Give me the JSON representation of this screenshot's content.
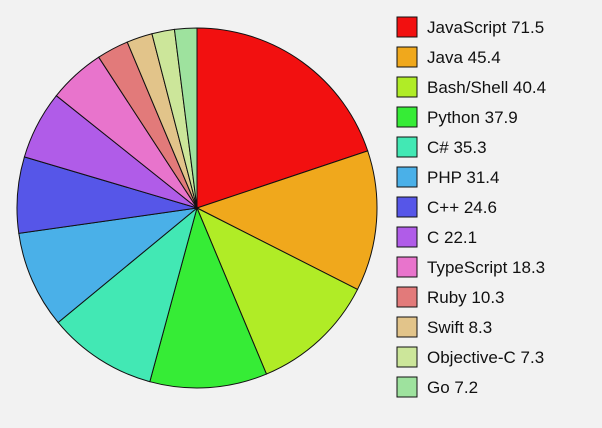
{
  "chart_data": {
    "type": "pie",
    "title": "",
    "legend_position": "right",
    "series": [
      {
        "name": "JavaScript",
        "value": 71.5,
        "label": "JavaScript 71.5",
        "color": "#f21010"
      },
      {
        "name": "Java",
        "value": 45.4,
        "label": "Java 45.4",
        "color": "#f0a81c"
      },
      {
        "name": "Bash/Shell",
        "value": 40.4,
        "label": "Bash/Shell 40.4",
        "color": "#b0ec26"
      },
      {
        "name": "Python",
        "value": 37.9,
        "label": "Python 37.9",
        "color": "#36ec36"
      },
      {
        "name": "C#",
        "value": 35.3,
        "label": "C# 35.3",
        "color": "#42e8b4"
      },
      {
        "name": "PHP",
        "value": 31.4,
        "label": "PHP 31.4",
        "color": "#4ab0e8"
      },
      {
        "name": "C++",
        "value": 24.6,
        "label": "C++ 24.6",
        "color": "#5656e8"
      },
      {
        "name": "C",
        "value": 22.1,
        "label": "C 22.1",
        "color": "#b05ce8"
      },
      {
        "name": "TypeScript",
        "value": 18.3,
        "label": "TypeScript 18.3",
        "color": "#e874cc"
      },
      {
        "name": "Ruby",
        "value": 10.3,
        "label": "Ruby 10.3",
        "color": "#e27a7a"
      },
      {
        "name": "Swift",
        "value": 8.3,
        "label": "Swift 8.3",
        "color": "#e2c48a"
      },
      {
        "name": "Objective-C",
        "value": 7.3,
        "label": "Objective-C 7.3",
        "color": "#cce69a"
      },
      {
        "name": "Go",
        "value": 7.2,
        "label": "Go 7.2",
        "color": "#9ee29e"
      }
    ]
  }
}
